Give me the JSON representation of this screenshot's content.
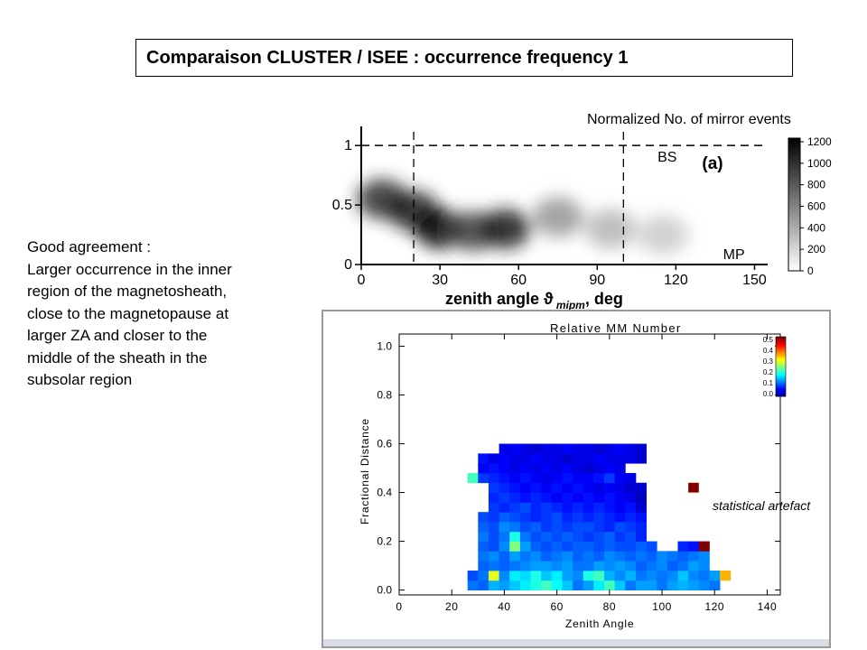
{
  "title": "Comparaison CLUSTER / ISEE : occurrence frequency 1",
  "description": [
    "Good agreement :",
    "Larger occurrence in the inner",
    "region of the magnetosheath,",
    "close to the magnetopause at",
    "larger ZA and closer to the",
    "middle of the sheath in the",
    "subsolar region"
  ],
  "annotation": "statistical artefact",
  "chart_data": [
    {
      "type": "heatmap",
      "title": "Normalized No. of mirror events",
      "panel_label": "(a)",
      "xlabel": "zenith angle ϑ",
      "xlabel_subscript": "mipm",
      "xlabel_unit": ", deg",
      "xlim": [
        0,
        155
      ],
      "ylim": [
        0,
        1.1
      ],
      "xticks": [
        "0",
        "30",
        "60",
        "90",
        "120",
        "150"
      ],
      "yticks": [
        "0",
        "0.5",
        "1"
      ],
      "colorscale": "grayscale",
      "colorbar_ticks": [
        "1200",
        "1000",
        "800",
        "600",
        "400",
        "200",
        "0"
      ],
      "reference_lines": [
        {
          "label": "BS",
          "y": 1
        },
        {
          "label": "MP",
          "y": 0
        },
        {
          "label": "",
          "x": 20
        },
        {
          "label": "",
          "x": 100
        }
      ],
      "peaks": [
        {
          "x": 8,
          "y": 0.55,
          "value": 1000
        },
        {
          "x": 20,
          "y": 0.45,
          "value": 1100
        },
        {
          "x": 30,
          "y": 0.3,
          "value": 1200
        },
        {
          "x": 43,
          "y": 0.28,
          "value": 900
        },
        {
          "x": 55,
          "y": 0.3,
          "value": 1100
        },
        {
          "x": 75,
          "y": 0.4,
          "value": 500
        },
        {
          "x": 95,
          "y": 0.3,
          "value": 350
        },
        {
          "x": 115,
          "y": 0.25,
          "value": 250
        }
      ]
    },
    {
      "type": "heatmap",
      "title": "Relative MM Number",
      "xlabel": "Zenith Angle",
      "ylabel": "Fractional Distance",
      "xlim": [
        0,
        145
      ],
      "ylim": [
        -0.02,
        1.05
      ],
      "xticks": [
        "0",
        "20",
        "40",
        "60",
        "80",
        "100",
        "120",
        "140"
      ],
      "yticks": [
        "0.0",
        "0.2",
        "0.4",
        "0.6",
        "0.8",
        "1.0"
      ],
      "colorbar_ticks": [
        "0.5",
        "0.4",
        "0.3",
        "0.2",
        "0.1",
        "0.0"
      ],
      "cell_x0": 14,
      "cell_dx": 4,
      "cell_y0": 0,
      "cell_dy": 0.04,
      "rows": [
        [
          0,
          0,
          0,
          0.12,
          0.11,
          0.15,
          0.14,
          0.16,
          0.18,
          0.2,
          0.22,
          0.19,
          0.16,
          0.12,
          0.14,
          0.18,
          0.22,
          0.16,
          0.12,
          0.14,
          0.14,
          0.12,
          0.14,
          0.15,
          0.14,
          0.13,
          0.12,
          0,
          0,
          0
        ],
        [
          0,
          0,
          0,
          0.1,
          0.12,
          0.3,
          0.13,
          0.18,
          0.17,
          0.2,
          0.16,
          0.18,
          0.14,
          0.13,
          0.2,
          0.22,
          0.15,
          0.13,
          0.15,
          0.12,
          0.13,
          0.12,
          0.13,
          0.16,
          0.13,
          0.12,
          0.14,
          0.35,
          0,
          0
        ],
        [
          0,
          0,
          0,
          0,
          0.11,
          0.12,
          0.11,
          0.12,
          0.13,
          0.14,
          0.14,
          0.13,
          0.14,
          0.12,
          0.12,
          0.14,
          0.13,
          0.14,
          0.13,
          0.11,
          0.12,
          0.13,
          0.11,
          0.12,
          0.14,
          0.13,
          0,
          0,
          0,
          0
        ],
        [
          0,
          0,
          0,
          0,
          0.12,
          0.13,
          0.11,
          0.14,
          0.12,
          0.13,
          0.11,
          0.12,
          0.13,
          0.11,
          0.12,
          0.11,
          0.13,
          0.12,
          0.11,
          0.12,
          0.11,
          0.13,
          0.12,
          0.11,
          0.12,
          0.13,
          0,
          0,
          0,
          0
        ],
        [
          0,
          0,
          0,
          0,
          0.11,
          0.1,
          0.13,
          0.25,
          0.14,
          0.11,
          0.1,
          0.11,
          0.1,
          0.11,
          0.11,
          0.1,
          0.11,
          0.1,
          0.1,
          0.11,
          0.1,
          0,
          0,
          0.08,
          0.07,
          0.5,
          0,
          0,
          0,
          0
        ],
        [
          0,
          0,
          0,
          0,
          0.12,
          0.1,
          0.12,
          0.2,
          0.12,
          0.1,
          0.11,
          0.1,
          0.11,
          0.1,
          0.09,
          0.1,
          0.11,
          0.09,
          0.1,
          0.08,
          0,
          0,
          0,
          0,
          0,
          0,
          0,
          0,
          0,
          0
        ],
        [
          0,
          0,
          0,
          0,
          0.11,
          0.1,
          0.13,
          0.12,
          0.1,
          0.11,
          0.09,
          0.1,
          0.09,
          0.1,
          0.1,
          0.09,
          0.08,
          0.1,
          0.09,
          0.08,
          0,
          0,
          0,
          0,
          0,
          0,
          0,
          0,
          0,
          0
        ],
        [
          0,
          0,
          0,
          0,
          0.1,
          0.09,
          0.11,
          0.1,
          0.09,
          0.08,
          0.09,
          0.1,
          0.08,
          0.09,
          0.08,
          0.09,
          0.08,
          0.07,
          0.08,
          0.07,
          0,
          0,
          0,
          0,
          0,
          0,
          0,
          0,
          0,
          0
        ],
        [
          0,
          0,
          0,
          0,
          0,
          0.09,
          0.08,
          0.09,
          0.1,
          0.08,
          0.09,
          0.08,
          0.07,
          0.08,
          0.07,
          0.08,
          0.07,
          0.06,
          0.07,
          0.04,
          0,
          0,
          0,
          0,
          0,
          0,
          0,
          0,
          0,
          0
        ],
        [
          0,
          0,
          0,
          0,
          0,
          0.08,
          0.09,
          0.08,
          0.07,
          0.08,
          0.07,
          0.06,
          0.07,
          0.06,
          0.07,
          0.06,
          0.07,
          0.06,
          0.05,
          0.03,
          0,
          0,
          0,
          0,
          0,
          0,
          0,
          0,
          0,
          0
        ],
        [
          0,
          0,
          0,
          0,
          0,
          0.09,
          0.08,
          0.07,
          0.06,
          0.07,
          0.06,
          0.07,
          0.06,
          0.07,
          0.06,
          0.05,
          0.06,
          0.05,
          0.04,
          0.04,
          0,
          0,
          0,
          0,
          0,
          0,
          0,
          0,
          0,
          0
        ],
        [
          0,
          0,
          0,
          0.22,
          0.09,
          0.08,
          0.07,
          0.06,
          0.07,
          0.06,
          0.05,
          0.06,
          0.07,
          0.06,
          0.06,
          0.07,
          0.09,
          0.06,
          0.05,
          0,
          0,
          0,
          0,
          0,
          0,
          0,
          0,
          0,
          0,
          0
        ],
        [
          0,
          0,
          0,
          0,
          0.06,
          0.07,
          0.06,
          0.05,
          0.06,
          0.05,
          0.06,
          0.05,
          0.06,
          0.05,
          0.04,
          0.05,
          0.06,
          0.05,
          0,
          0,
          0,
          0,
          0,
          0,
          0,
          0,
          0,
          0,
          0,
          0
        ],
        [
          0,
          0,
          0,
          0,
          0.07,
          0.05,
          0.06,
          0.05,
          0.05,
          0.06,
          0.05,
          0.05,
          0.04,
          0.05,
          0.05,
          0.06,
          0.05,
          0.05,
          0.05,
          0.04,
          0,
          0,
          0,
          0,
          0,
          0,
          0,
          0,
          0,
          0
        ],
        [
          0,
          0,
          0,
          0,
          0,
          0,
          0.05,
          0.06,
          0.05,
          0.04,
          0.05,
          0.05,
          0.06,
          0.05,
          0.05,
          0.04,
          0.05,
          0.06,
          0.05,
          0.04,
          0,
          0,
          0,
          0,
          0,
          0,
          0,
          0,
          0,
          0
        ]
      ],
      "annotation_cell": {
        "x": 110,
        "y": 0.4,
        "value": 0.5
      }
    }
  ]
}
